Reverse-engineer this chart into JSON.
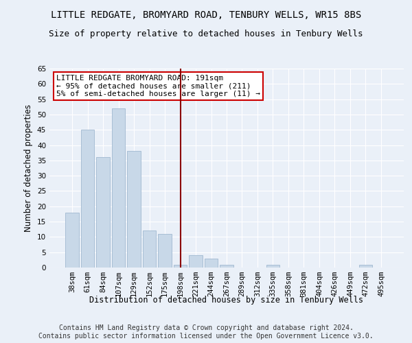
{
  "title1": "LITTLE REDGATE, BROMYARD ROAD, TENBURY WELLS, WR15 8BS",
  "title2": "Size of property relative to detached houses in Tenbury Wells",
  "xlabel": "Distribution of detached houses by size in Tenbury Wells",
  "ylabel": "Number of detached properties",
  "footnote": "Contains HM Land Registry data © Crown copyright and database right 2024.\nContains public sector information licensed under the Open Government Licence v3.0.",
  "categories": [
    "38sqm",
    "61sqm",
    "84sqm",
    "107sqm",
    "129sqm",
    "152sqm",
    "175sqm",
    "198sqm",
    "221sqm",
    "244sqm",
    "267sqm",
    "289sqm",
    "312sqm",
    "335sqm",
    "358sqm",
    "381sqm",
    "404sqm",
    "426sqm",
    "449sqm",
    "472sqm",
    "495sqm"
  ],
  "values": [
    18,
    45,
    36,
    52,
    38,
    12,
    11,
    1,
    4,
    3,
    1,
    0,
    0,
    1,
    0,
    0,
    0,
    0,
    0,
    1,
    0
  ],
  "bar_color": "#c8d8e8",
  "bar_edge_color": "#a0b8d0",
  "vline_x": 7.0,
  "vline_color": "#8b0000",
  "ylim": [
    0,
    65
  ],
  "yticks": [
    0,
    5,
    10,
    15,
    20,
    25,
    30,
    35,
    40,
    45,
    50,
    55,
    60,
    65
  ],
  "annotation_text": "LITTLE REDGATE BROMYARD ROAD: 191sqm\n← 95% of detached houses are smaller (211)\n5% of semi-detached houses are larger (11) →",
  "annotation_box_color": "#ffffff",
  "annotation_box_edge": "#cc0000",
  "background_color": "#eaf0f8",
  "grid_color": "#ffffff",
  "title1_fontsize": 10,
  "title2_fontsize": 9,
  "axis_label_fontsize": 8.5,
  "tick_fontsize": 7.5,
  "annotation_fontsize": 8,
  "footnote_fontsize": 7
}
